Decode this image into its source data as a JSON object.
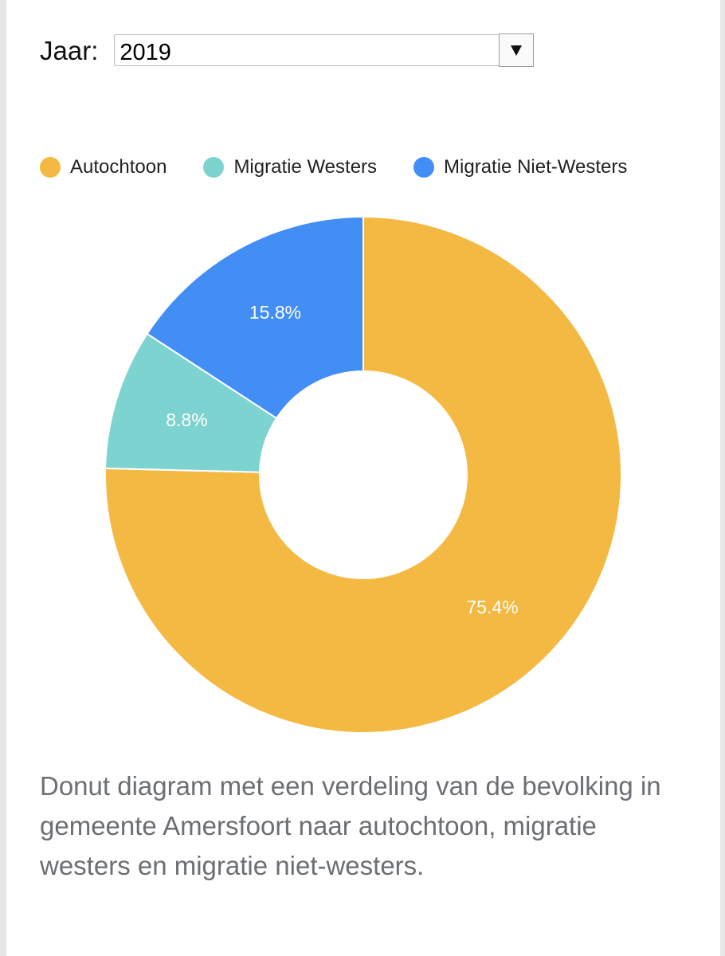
{
  "year_selector": {
    "label": "Jaar:",
    "value": "2019"
  },
  "chart_data": {
    "type": "pie",
    "variant": "donut",
    "unit": "%",
    "categories": [
      "Autochtoon",
      "Migratie Westers",
      "Migratie Niet-Westers"
    ],
    "values": [
      75.4,
      8.8,
      15.8
    ],
    "value_labels": [
      "75.4%",
      "8.8%",
      "15.8%"
    ],
    "colors": [
      "#f4b942",
      "#7dd3cf",
      "#428ef5"
    ],
    "legend_position": "top",
    "start_angle_degrees": 0,
    "direction": "clockwise"
  },
  "caption": "Donut diagram met een verdeling van de bevolking in gemeente Amersfoort naar autochtoon, migratie westers en migratie niet-westers."
}
